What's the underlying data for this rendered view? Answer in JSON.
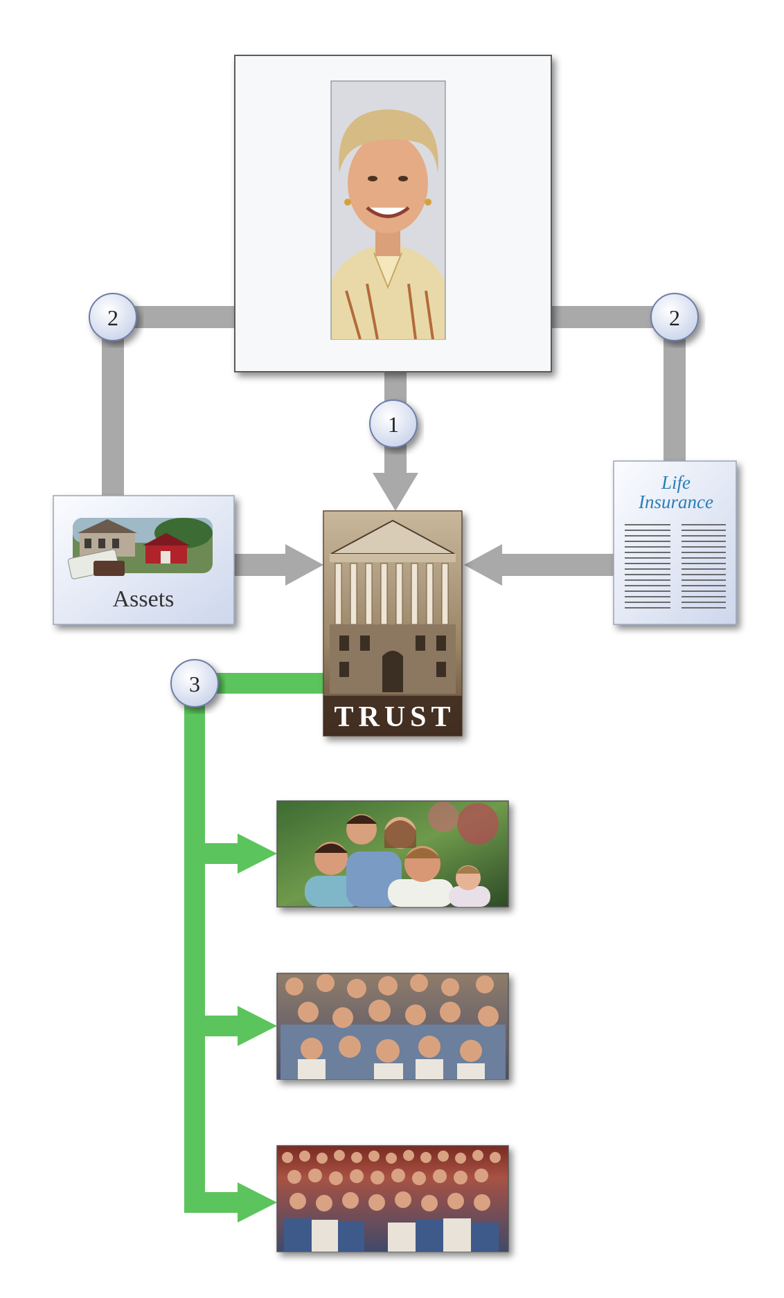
{
  "steps": {
    "step_1": "1",
    "step_2_left": "2",
    "step_2_right": "2",
    "step_3": "3"
  },
  "nodes": {
    "grantor": {
      "image": "portrait of smiling elderly woman"
    },
    "assets": {
      "label": "Assets",
      "image": "houses, barn and money"
    },
    "trust": {
      "label": "TRUST",
      "image": "neoclassical building facade"
    },
    "life_insurance": {
      "title_line_1": "Life",
      "title_line_2": "Insurance"
    },
    "beneficiaries": [
      {
        "image": "family of five outdoors"
      },
      {
        "image": "extended family group"
      },
      {
        "image": "large multi-generation family group"
      }
    ]
  },
  "colors": {
    "gray_arrow": "#a9a9a9",
    "green_arrow": "#5cc45c",
    "badge_fill": "#e6ecf8",
    "trust_title": "#ffffff",
    "life_insurance_title": "#2a7db6"
  }
}
